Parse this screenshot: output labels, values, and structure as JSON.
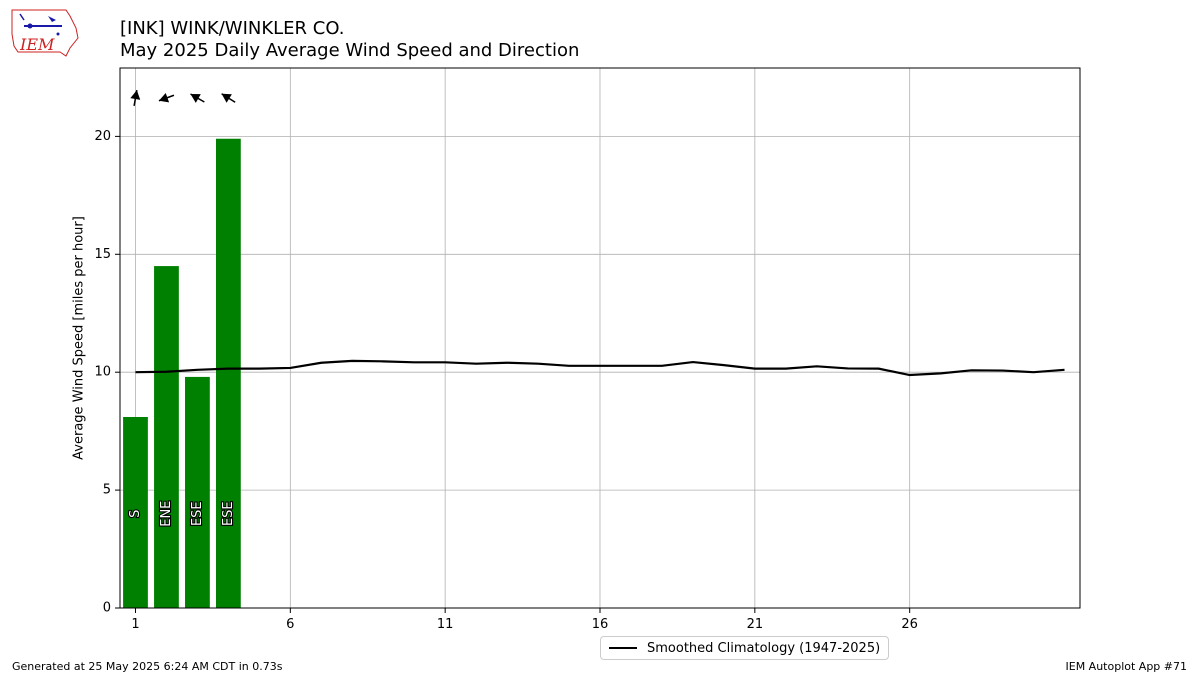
{
  "header": {
    "title": "[INK] WINK/WINKLER CO.",
    "subtitle": "May 2025 Daily Average Wind Speed and Direction"
  },
  "logo": {
    "text": "IEM",
    "color": "#cc2222",
    "accent": "#1a1aa8"
  },
  "footer": {
    "generated": "Generated at 25 May 2025 6:24 AM CDT in 0.73s",
    "app": "IEM Autoplot App #71"
  },
  "chart_data": {
    "type": "bar",
    "ylabel": "Average Wind Speed [miles per hour]",
    "xlabel": "",
    "xlim": [
      0.5,
      31.5
    ],
    "ylim": [
      0,
      22.9
    ],
    "x_ticks": [
      1,
      6,
      11,
      16,
      21,
      26
    ],
    "y_ticks": [
      0,
      5,
      10,
      15,
      20
    ],
    "grid": true,
    "bar_color": "#008000",
    "bars": [
      {
        "day": 1,
        "speed": 8.1,
        "direction_label": "S",
        "arrow_angle_deg": 80
      },
      {
        "day": 2,
        "speed": 14.5,
        "direction_label": "ENE",
        "arrow_angle_deg": 200
      },
      {
        "day": 3,
        "speed": 9.8,
        "direction_label": "ESE",
        "arrow_angle_deg": 150
      },
      {
        "day": 4,
        "speed": 19.9,
        "direction_label": "ESE",
        "arrow_angle_deg": 148
      }
    ],
    "climatology": {
      "name": "Smoothed Climatology (1947-2025)",
      "days": [
        1,
        2,
        3,
        4,
        5,
        6,
        7,
        8,
        9,
        10,
        11,
        12,
        13,
        14,
        15,
        16,
        17,
        18,
        19,
        20,
        21,
        22,
        23,
        24,
        25,
        26,
        27,
        28,
        29,
        30,
        31
      ],
      "values": [
        10.0,
        10.02,
        10.1,
        10.15,
        10.15,
        10.18,
        10.4,
        10.48,
        10.46,
        10.42,
        10.42,
        10.36,
        10.4,
        10.36,
        10.27,
        10.27,
        10.27,
        10.27,
        10.43,
        10.3,
        10.15,
        10.15,
        10.25,
        10.16,
        10.15,
        9.88,
        9.95,
        10.08,
        10.07,
        10.0,
        10.1
      ]
    },
    "legend_position": "bottom-center"
  }
}
